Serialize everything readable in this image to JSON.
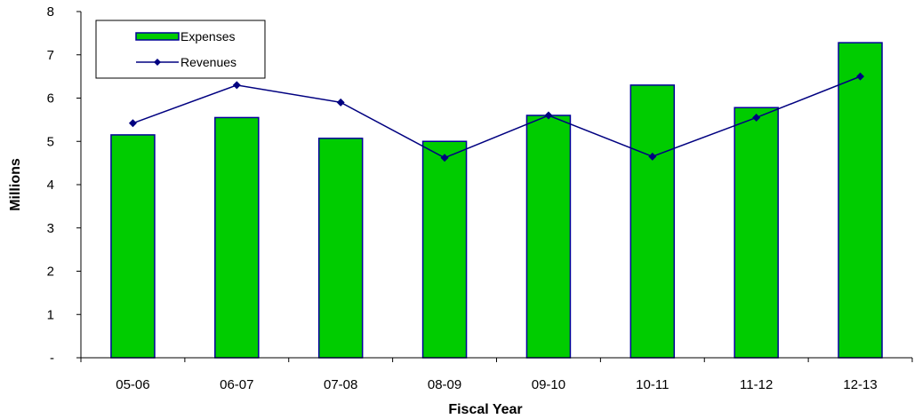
{
  "chart_data": {
    "type": "bar",
    "title": "",
    "xlabel": "Fiscal Year",
    "ylabel": "Millions",
    "ylim": [
      0,
      8
    ],
    "ytick_labels": [
      "-",
      "1",
      "2",
      "3",
      "4",
      "5",
      "6",
      "7",
      "8"
    ],
    "categories": [
      "05-06",
      "06-07",
      "07-08",
      "08-09",
      "09-10",
      "10-11",
      "11-12",
      "12-13"
    ],
    "series": [
      {
        "name": "Expenses",
        "type": "bar",
        "color": "#00CC00",
        "edge_color": "#000099",
        "values": [
          5.15,
          5.55,
          5.07,
          5.0,
          5.6,
          6.3,
          5.78,
          7.28
        ]
      },
      {
        "name": "Revenues",
        "type": "line",
        "color": "#000080",
        "marker": "diamond",
        "values": [
          5.42,
          6.3,
          5.9,
          4.62,
          5.6,
          4.65,
          5.55,
          6.5
        ]
      }
    ],
    "legend_position": "top-left",
    "grid": false
  }
}
